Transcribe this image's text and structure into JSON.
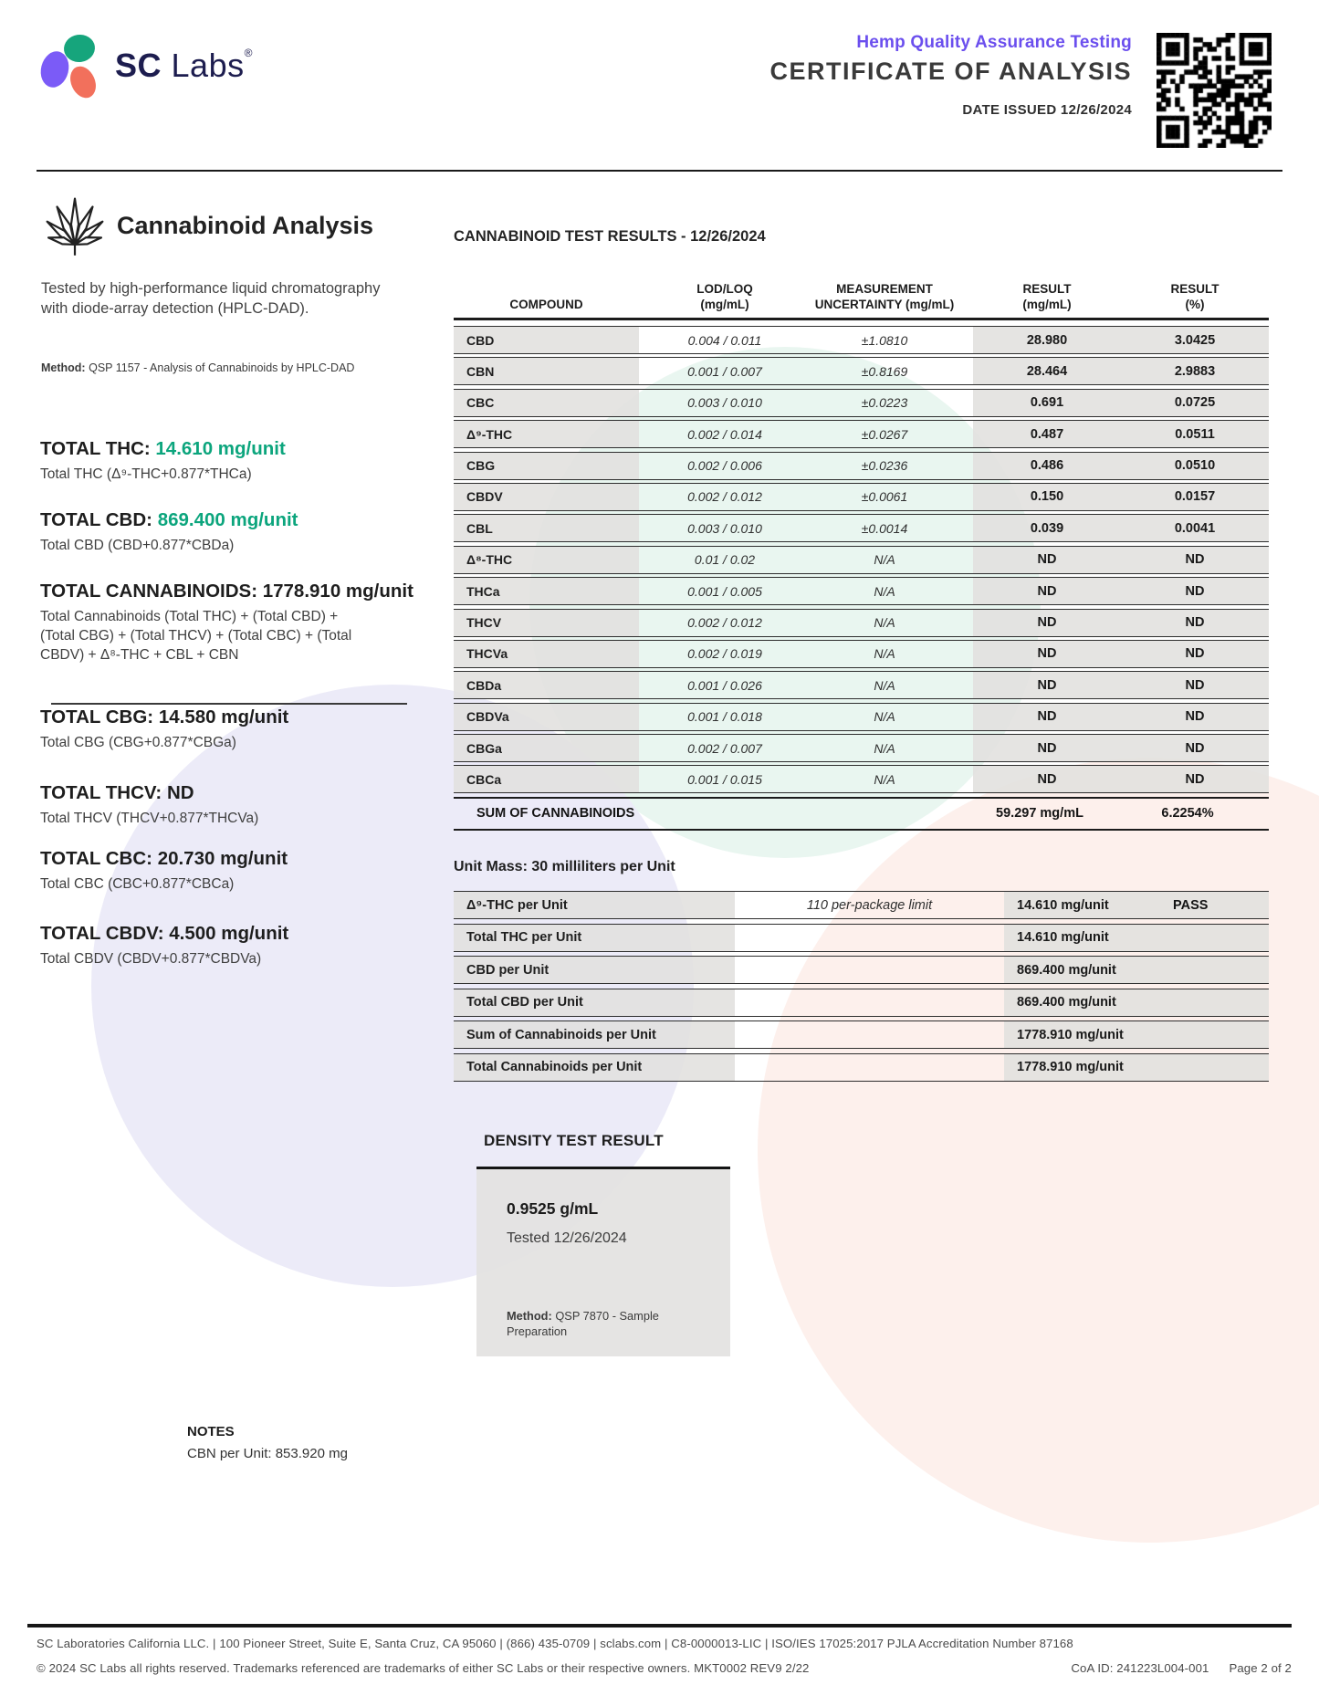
{
  "colors": {
    "accent_teal": "#0ca57d",
    "accent_purple": "#6b4fee",
    "logo_purple": "#7b5bf7",
    "logo_green": "#16a57c",
    "logo_coral": "#f2705c",
    "brand_navy": "#1d1d4f"
  },
  "header": {
    "brand_bold": "SC",
    "brand_light": "Labs",
    "registered": "®",
    "program": "Hemp Quality Assurance Testing",
    "doc_title": "CERTIFICATE OF ANALYSIS",
    "date_issued": "DATE ISSUED 12/26/2024"
  },
  "analysis": {
    "heading": "Cannabinoid Analysis",
    "description": "Tested by high-performance liquid chromatography with diode-array detection (HPLC-DAD).",
    "method_label": "Method:",
    "method": "QSP 1157 - Analysis of Cannabinoids by HPLC-DAD",
    "totals": [
      {
        "label": "TOTAL THC:",
        "value": "14.610 mg/unit",
        "highlight": true,
        "formula": "Total THC (Δ⁹-THC+0.877*THCa)"
      },
      {
        "label": "TOTAL CBD:",
        "value": "869.400 mg/unit",
        "highlight": true,
        "formula": "Total CBD (CBD+0.877*CBDa)"
      },
      {
        "label": "TOTAL CANNABINOIDS:",
        "value": "1778.910 mg/unit",
        "highlight": false,
        "formula": "Total Cannabinoids (Total THC) + (Total CBD) + (Total CBG) + (Total THCV) + (Total CBC) + (Total CBDV) + Δ⁸-THC + CBL + CBN",
        "divider_after": true
      },
      {
        "label": "TOTAL CBG:",
        "value": "14.580 mg/unit",
        "highlight": false,
        "formula": "Total CBG (CBG+0.877*CBGa)"
      },
      {
        "label": "TOTAL THCV:",
        "value": "ND",
        "highlight": false,
        "formula": "Total THCV (THCV+0.877*THCVa)"
      },
      {
        "label": "TOTAL CBC:",
        "value": "20.730 mg/unit",
        "highlight": false,
        "formula": "Total CBC (CBC+0.877*CBCa)"
      },
      {
        "label": "TOTAL CBDV:",
        "value": "4.500 mg/unit",
        "highlight": false,
        "formula": "Total CBDV (CBDV+0.877*CBDVa)"
      }
    ]
  },
  "results_table": {
    "title": "CANNABINOID TEST RESULTS - 12/26/2024",
    "columns": [
      "COMPOUND",
      "LOD/LOQ\n(mg/mL)",
      "MEASUREMENT\nUNCERTAINTY (mg/mL)",
      "RESULT\n(mg/mL)",
      "RESULT\n(%)"
    ],
    "rows": [
      {
        "compound": "CBD",
        "lod_loq": "0.004 / 0.011",
        "uncertainty": "±1.0810",
        "result_mg": "28.980",
        "result_pct": "3.0425"
      },
      {
        "compound": "CBN",
        "lod_loq": "0.001 / 0.007",
        "uncertainty": "±0.8169",
        "result_mg": "28.464",
        "result_pct": "2.9883"
      },
      {
        "compound": "CBC",
        "lod_loq": "0.003 / 0.010",
        "uncertainty": "±0.0223",
        "result_mg": "0.691",
        "result_pct": "0.0725"
      },
      {
        "compound": "Δ⁹-THC",
        "lod_loq": "0.002 / 0.014",
        "uncertainty": "±0.0267",
        "result_mg": "0.487",
        "result_pct": "0.0511"
      },
      {
        "compound": "CBG",
        "lod_loq": "0.002 / 0.006",
        "uncertainty": "±0.0236",
        "result_mg": "0.486",
        "result_pct": "0.0510"
      },
      {
        "compound": "CBDV",
        "lod_loq": "0.002 / 0.012",
        "uncertainty": "±0.0061",
        "result_mg": "0.150",
        "result_pct": "0.0157"
      },
      {
        "compound": "CBL",
        "lod_loq": "0.003 / 0.010",
        "uncertainty": "±0.0014",
        "result_mg": "0.039",
        "result_pct": "0.0041"
      },
      {
        "compound": "Δ⁸-THC",
        "lod_loq": "0.01 / 0.02",
        "uncertainty": "N/A",
        "result_mg": "ND",
        "result_pct": "ND"
      },
      {
        "compound": "THCa",
        "lod_loq": "0.001 / 0.005",
        "uncertainty": "N/A",
        "result_mg": "ND",
        "result_pct": "ND"
      },
      {
        "compound": "THCV",
        "lod_loq": "0.002 / 0.012",
        "uncertainty": "N/A",
        "result_mg": "ND",
        "result_pct": "ND"
      },
      {
        "compound": "THCVa",
        "lod_loq": "0.002 / 0.019",
        "uncertainty": "N/A",
        "result_mg": "ND",
        "result_pct": "ND"
      },
      {
        "compound": "CBDa",
        "lod_loq": "0.001 / 0.026",
        "uncertainty": "N/A",
        "result_mg": "ND",
        "result_pct": "ND"
      },
      {
        "compound": "CBDVa",
        "lod_loq": "0.001 / 0.018",
        "uncertainty": "N/A",
        "result_mg": "ND",
        "result_pct": "ND"
      },
      {
        "compound": "CBGa",
        "lod_loq": "0.002 / 0.007",
        "uncertainty": "N/A",
        "result_mg": "ND",
        "result_pct": "ND"
      },
      {
        "compound": "CBCa",
        "lod_loq": "0.001 / 0.015",
        "uncertainty": "N/A",
        "result_mg": "ND",
        "result_pct": "ND"
      }
    ],
    "sum_row": {
      "label": "SUM OF CANNABINOIDS",
      "result_mg": "59.297 mg/mL",
      "result_pct": "6.2254%"
    }
  },
  "unit_mass": {
    "title": "Unit Mass: 30 milliliters per Unit",
    "rows": [
      {
        "label": "Δ⁹-THC per Unit",
        "limit": "110 per-package limit",
        "value": "14.610 mg/unit",
        "status": "PASS"
      },
      {
        "label": "Total THC per Unit",
        "limit": "",
        "value": "14.610 mg/unit",
        "status": ""
      },
      {
        "label": "CBD per Unit",
        "limit": "",
        "value": "869.400 mg/unit",
        "status": ""
      },
      {
        "label": "Total CBD per Unit",
        "limit": "",
        "value": "869.400 mg/unit",
        "status": ""
      },
      {
        "label": "Sum of Cannabinoids per Unit",
        "limit": "",
        "value": "1778.910 mg/unit",
        "status": ""
      },
      {
        "label": "Total Cannabinoids per Unit",
        "limit": "",
        "value": "1778.910 mg/unit",
        "status": ""
      }
    ]
  },
  "density": {
    "title": "DENSITY TEST RESULT",
    "value": "0.9525 g/mL",
    "tested": "Tested 12/26/2024",
    "method_label": "Method:",
    "method": "QSP 7870 - Sample Preparation"
  },
  "notes": {
    "heading": "NOTES",
    "text": "CBN per Unit: 853.920 mg"
  },
  "footer": {
    "line1": "SC Laboratories California LLC. | 100 Pioneer Street, Suite E, Santa Cruz, CA 95060 | (866) 435-0709 | sclabs.com | C8-0000013-LIC | ISO/IES 17025:2017 PJLA Accreditation Number 87168",
    "line2": "© 2024 SC Labs all rights reserved. Trademarks referenced are trademarks of either SC Labs or their respective owners. MKT0002 REV9 2/22",
    "coa_id": "CoA ID: 241223L004-001",
    "page": "Page 2 of 2"
  }
}
